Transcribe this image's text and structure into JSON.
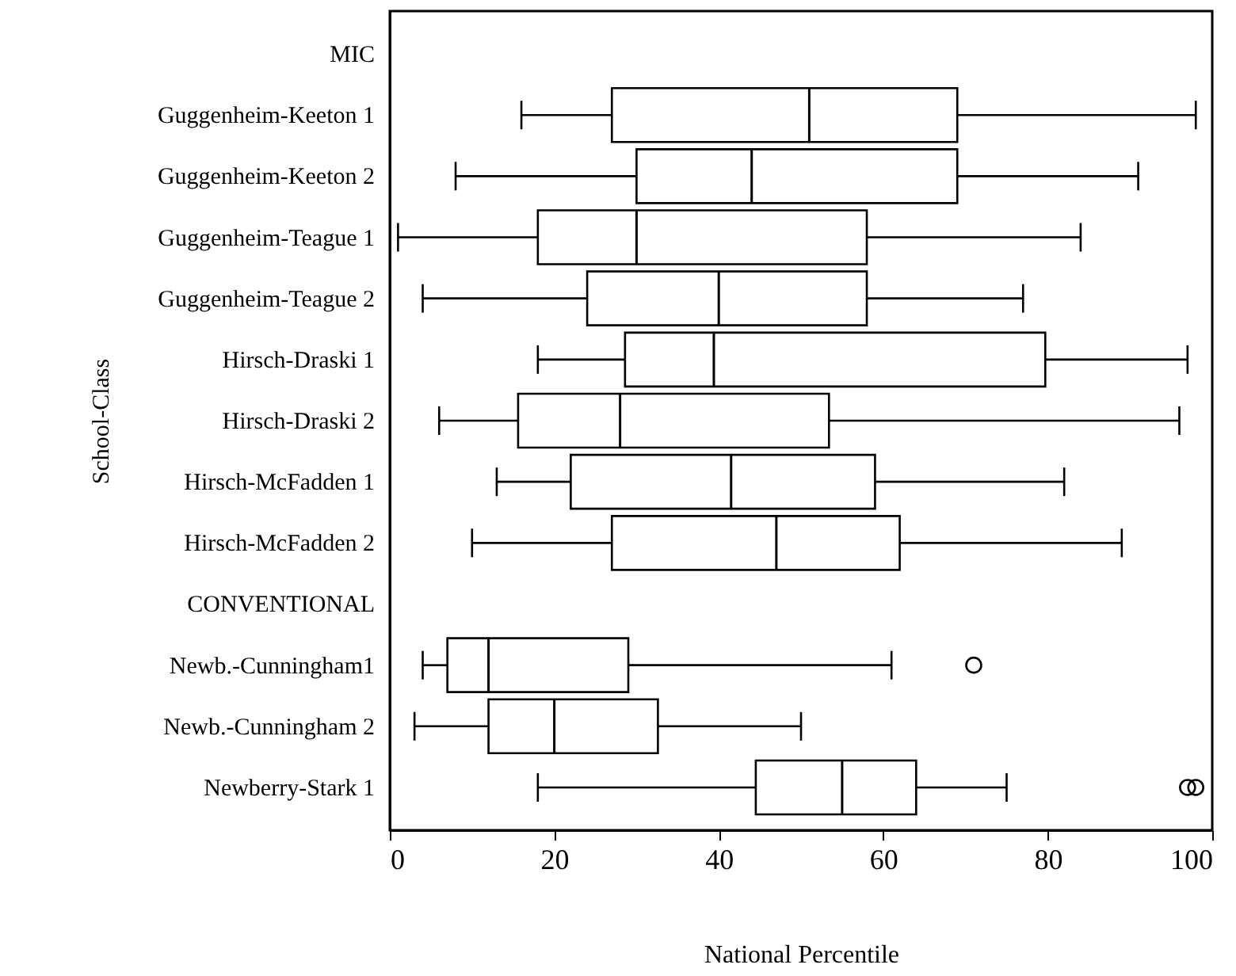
{
  "chart_data": {
    "type": "box",
    "orientation": "horizontal",
    "xlabel": "National Percentile",
    "ylabel": "School-Class",
    "categories": [
      "MIC",
      "Guggenheim-Keeton 1",
      "Guggenheim-Keeton 2",
      "Guggenheim-Teague 1",
      "Guggenheim-Teague 2",
      "Hirsch-Draski 1",
      "Hirsch-Draski 2",
      "Hirsch-McFadden 1",
      "Hirsch-McFadden 2",
      "CONVENTIONAL",
      "Newb.-Cunningham1",
      "Newb.-Cunningham 2",
      "Newberry-Stark 1"
    ],
    "boxes": [
      null,
      {
        "low": 16,
        "q1": 27,
        "median": 51,
        "q3": 69,
        "high": 98
      },
      {
        "low": 8,
        "q1": 30,
        "median": 44,
        "q3": 69,
        "high": 91
      },
      {
        "low": 1,
        "q1": 18,
        "median": 30,
        "q3": 58,
        "high": 84
      },
      {
        "low": 4,
        "q1": 24,
        "median": 40,
        "q3": 58,
        "high": 77
      },
      {
        "low": 18,
        "q1": 28.6,
        "median": 39.4,
        "q3": 79.7,
        "high": 97
      },
      {
        "low": 6,
        "q1": 15.6,
        "median": 28,
        "q3": 53.4,
        "high": 96
      },
      {
        "low": 13,
        "q1": 22,
        "median": 41.5,
        "q3": 59,
        "high": 82
      },
      {
        "low": 10,
        "q1": 27,
        "median": 47,
        "q3": 62,
        "high": 89
      },
      null,
      {
        "low": 4,
        "q1": 7,
        "median": 12,
        "q3": 29,
        "high": 61,
        "outliers": [
          71
        ]
      },
      {
        "low": 3,
        "q1": 12,
        "median": 20,
        "q3": 32.6,
        "high": 50
      },
      {
        "low": 18,
        "q1": 44.5,
        "median": 55,
        "q3": 64,
        "high": 75,
        "outliers": [
          97,
          98
        ]
      }
    ],
    "xlim": [
      0,
      100
    ],
    "xticks": [
      0,
      20,
      40,
      60,
      80,
      100
    ],
    "grid": false
  }
}
